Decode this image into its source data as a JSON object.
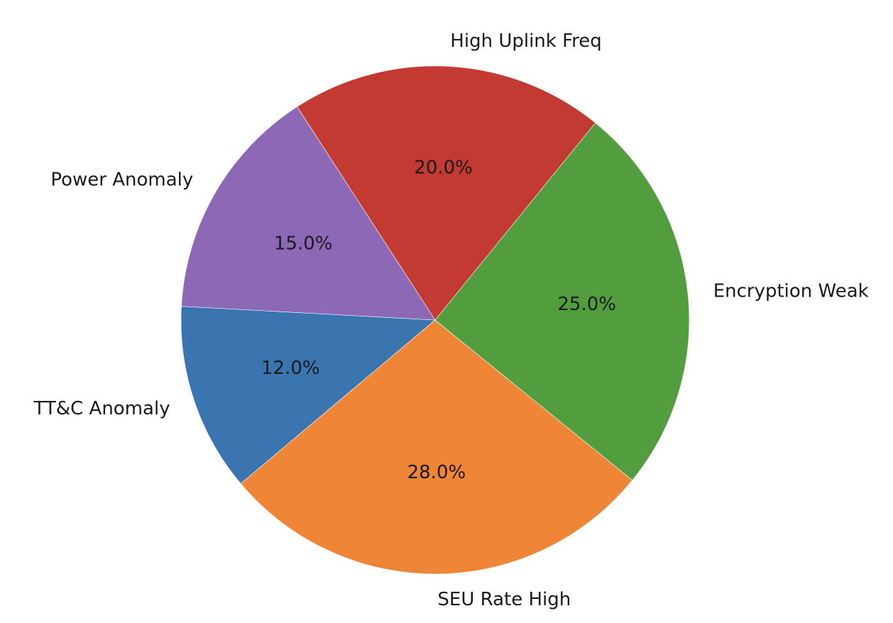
{
  "chart_data": {
    "type": "pie",
    "title": "",
    "start_angle_deg": 176.9,
    "direction": "counterclockwise",
    "slices": [
      {
        "label": "TT&C Anomaly",
        "value": 12.0,
        "pct_label": "12.0%",
        "color": "#3a75af"
      },
      {
        "label": "SEU Rate High",
        "value": 28.0,
        "pct_label": "28.0%",
        "color": "#ee8537"
      },
      {
        "label": "Encryption Weak",
        "value": 25.0,
        "pct_label": "25.0%",
        "color": "#529e3f"
      },
      {
        "label": "High Uplink Freq",
        "value": 20.0,
        "pct_label": "20.0%",
        "color": "#c23a32"
      },
      {
        "label": "Power Anomaly",
        "value": 15.0,
        "pct_label": "15.0%",
        "color": "#8c68b7"
      }
    ]
  }
}
